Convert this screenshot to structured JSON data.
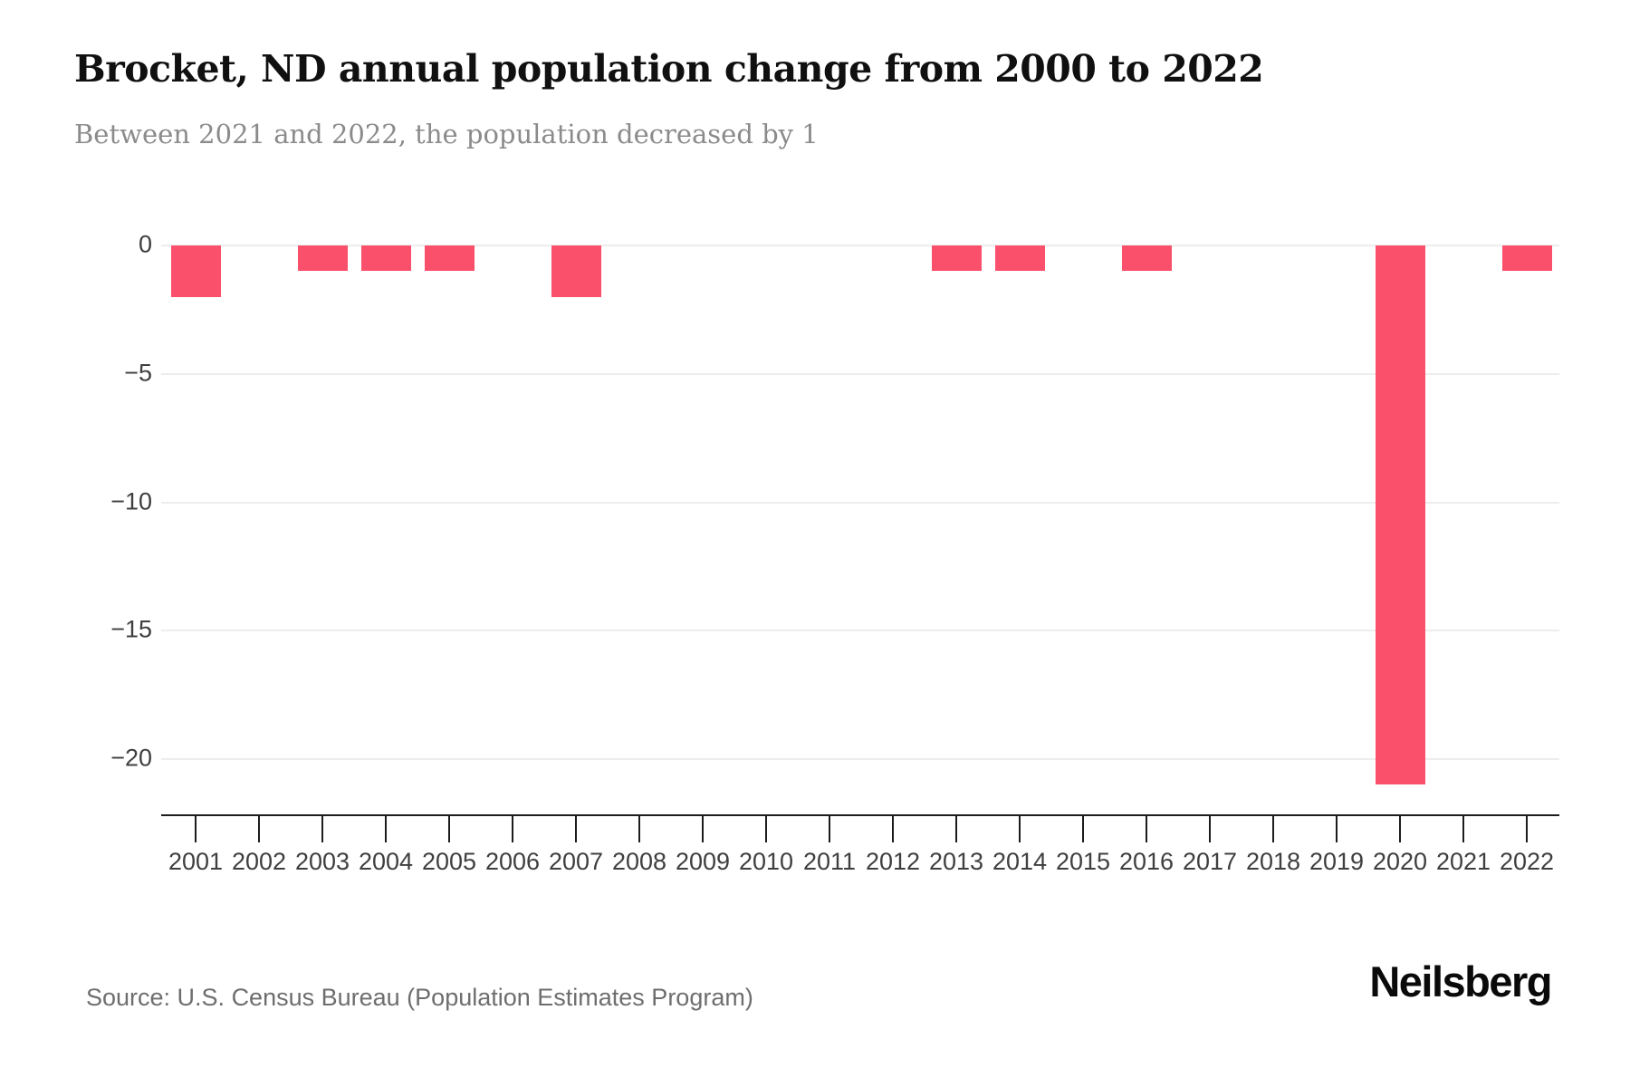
{
  "page": {
    "title": "Brocket, ND annual population change from 2000 to 2022",
    "subtitle": "Between 2021 and 2022, the population decreased by 1",
    "source": "Source: U.S. Census Bureau (Population Estimates Program)",
    "brand": "Neilsberg"
  },
  "colors": {
    "bar": "#fb506c",
    "grid": "#ededed",
    "axis": "#1c1c1c",
    "tick_label": "#3f3f3f",
    "title": "#101010",
    "subtitle": "#8b8b8b",
    "source": "#6e6e6e"
  },
  "chart_data": {
    "type": "bar",
    "title": "Brocket, ND annual population change from 2000 to 2022",
    "subtitle": "Between 2021 and 2022, the population decreased by 1",
    "categories": [
      "2001",
      "2002",
      "2003",
      "2004",
      "2005",
      "2006",
      "2007",
      "2008",
      "2009",
      "2010",
      "2011",
      "2012",
      "2013",
      "2014",
      "2015",
      "2016",
      "2017",
      "2018",
      "2019",
      "2020",
      "2021",
      "2022"
    ],
    "values": [
      -2,
      0,
      -1,
      -1,
      -1,
      0,
      -2,
      0,
      0,
      0,
      0,
      0,
      -1,
      -1,
      0,
      -1,
      0,
      0,
      0,
      -21,
      0,
      -1
    ],
    "xlabel": "",
    "ylabel": "",
    "ylim": [
      -22,
      0
    ],
    "yticks": [
      0,
      -5,
      -10,
      -15,
      -20
    ],
    "ytick_labels": [
      "0",
      "−5",
      "−10",
      "−15",
      "−20"
    ],
    "grid": "horizontal-only",
    "legend": "none",
    "bar_color": "#fb506c"
  }
}
